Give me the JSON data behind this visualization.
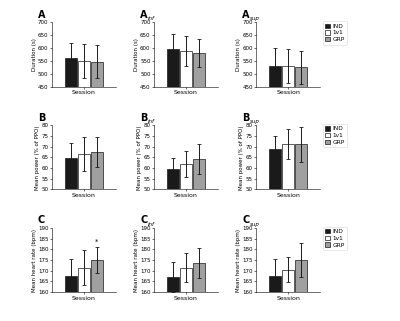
{
  "panels": [
    {
      "label": "A",
      "sublabel": "",
      "ylabel": "Duration (s)",
      "ylim": [
        450,
        700
      ],
      "yticks": [
        450,
        500,
        550,
        600,
        650,
        700
      ],
      "bars": [
        560,
        550,
        548
      ],
      "errors": [
        60,
        65,
        65
      ]
    },
    {
      "label": "A",
      "sublabel": "inf",
      "ylabel": "Duration (s)",
      "ylim": [
        450,
        700
      ],
      "yticks": [
        450,
        500,
        550,
        600,
        650,
        700
      ],
      "bars": [
        595,
        588,
        580
      ],
      "errors": [
        60,
        58,
        55
      ]
    },
    {
      "label": "A",
      "sublabel": "sup",
      "ylabel": "Duration (s)",
      "ylim": [
        450,
        700
      ],
      "yticks": [
        450,
        500,
        550,
        600,
        650,
        700
      ],
      "bars": [
        532,
        530,
        525
      ],
      "errors": [
        70,
        65,
        65
      ],
      "legend": true
    },
    {
      "label": "B",
      "sublabel": "",
      "ylabel": "Mean power (% of PPO)",
      "ylim": [
        50,
        80
      ],
      "yticks": [
        50,
        55,
        60,
        65,
        70,
        75,
        80
      ],
      "bars": [
        64.5,
        66.5,
        67.5
      ],
      "errors": [
        7,
        8,
        7
      ]
    },
    {
      "label": "B",
      "sublabel": "inf",
      "ylabel": "Mean power (% of PPO)",
      "ylim": [
        50,
        80
      ],
      "yticks": [
        50,
        55,
        60,
        65,
        70,
        75,
        80
      ],
      "bars": [
        59.5,
        62,
        64
      ],
      "errors": [
        5,
        6,
        7
      ]
    },
    {
      "label": "B",
      "sublabel": "sup",
      "ylabel": "Mean power (% of PPO)",
      "ylim": [
        50,
        80
      ],
      "yticks": [
        50,
        55,
        60,
        65,
        70,
        75,
        80
      ],
      "bars": [
        69,
        71,
        71
      ],
      "errors": [
        6,
        7,
        8
      ],
      "legend": true
    },
    {
      "label": "C",
      "sublabel": "",
      "ylabel": "Mean heart rate (bpm)",
      "ylim": [
        160,
        190
      ],
      "yticks": [
        160,
        165,
        170,
        175,
        180,
        185,
        190
      ],
      "bars": [
        167.5,
        171.5,
        175
      ],
      "errors": [
        8,
        8,
        6
      ],
      "star": 2
    },
    {
      "label": "C",
      "sublabel": "inf",
      "ylabel": "Mean heart rate (bpm)",
      "ylim": [
        160,
        190
      ],
      "yticks": [
        160,
        165,
        170,
        175,
        180,
        185,
        190
      ],
      "bars": [
        167,
        171.5,
        173.5
      ],
      "errors": [
        7,
        7,
        7
      ]
    },
    {
      "label": "C",
      "sublabel": "sup",
      "ylabel": "Mean heart rate (bpm)",
      "ylim": [
        160,
        190
      ],
      "yticks": [
        160,
        165,
        170,
        175,
        180,
        185,
        190
      ],
      "bars": [
        167.5,
        170.5,
        175
      ],
      "errors": [
        8,
        6,
        8
      ],
      "legend": true
    }
  ],
  "bar_colors": [
    "#1a1a1a",
    "#ffffff",
    "#a0a0a0"
  ],
  "bar_edgecolor": "#1a1a1a",
  "legend_labels": [
    "IND",
    "1v1",
    "GRP"
  ],
  "xlabel": "Session",
  "bar_width": 0.22,
  "capsize": 1.5,
  "elinewidth": 0.7,
  "grid_cols": 3,
  "grid_rows": 3
}
